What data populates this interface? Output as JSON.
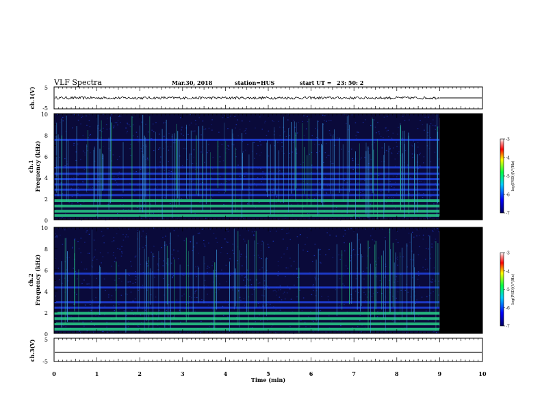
{
  "header": {
    "title": "VLF Spectra",
    "date": "Mar.30, 2018",
    "station": "station=HUS",
    "start_label": "start  UT =",
    "start_time": "23: 50: 2"
  },
  "chart_data": [
    {
      "type": "line",
      "name": "ch1-waveform",
      "ylabel": "ch.1(V)",
      "ylim": [
        -5,
        5
      ],
      "yticks": [
        "5",
        "-5"
      ],
      "xlim": [
        0,
        10
      ],
      "description_values": {
        "mean": 0,
        "noise_amplitude": 0.6,
        "data_end_min": 9.0
      }
    },
    {
      "type": "heatmap",
      "name": "ch1-spectrogram",
      "ylabel": "Frequency (kHz)",
      "channel_label": "ch.1",
      "xlim": [
        0,
        10
      ],
      "ylim": [
        0,
        10
      ],
      "yticks": [
        "0",
        "2",
        "4",
        "6",
        "8",
        "10"
      ],
      "data_end_min": 9.0,
      "bands_khz": [
        0.4,
        0.8,
        1.3,
        1.8,
        2.3,
        2.8,
        3.3,
        3.8,
        4.3,
        4.9,
        7.5
      ],
      "colorbar": {
        "label": "log(PSD)(V²/Hz)",
        "ticks": [
          "-3",
          "-4",
          "-5",
          "-6",
          "-7"
        ],
        "range": [
          -7,
          -3
        ]
      }
    },
    {
      "type": "heatmap",
      "name": "ch2-spectrogram",
      "ylabel": "Frequency (kHz)",
      "channel_label": "ch.2",
      "xlim": [
        0,
        10
      ],
      "ylim": [
        0,
        10
      ],
      "yticks": [
        "0",
        "2",
        "4",
        "6",
        "8",
        "10"
      ],
      "data_end_min": 9.0,
      "bands_khz": [
        0.4,
        0.9,
        1.4,
        1.9,
        2.4,
        2.9,
        4.3,
        5.6
      ],
      "colorbar": {
        "label": "log(PSD)(V²/Hz)",
        "ticks": [
          "-3",
          "-4",
          "-5",
          "-6",
          "-7"
        ],
        "range": [
          -7,
          -3
        ]
      }
    },
    {
      "type": "line",
      "name": "ch3-waveform",
      "ylabel": "ch.3(V)",
      "ylim": [
        -5,
        5
      ],
      "yticks": [
        "5",
        "-5"
      ],
      "xlim": [
        0,
        10
      ],
      "description_values": {
        "mean": -1.0,
        "noise_amplitude": 0
      }
    }
  ],
  "xaxis": {
    "label": "Time  (min)",
    "ticks": [
      "0",
      "1",
      "2",
      "3",
      "4",
      "5",
      "6",
      "7",
      "8",
      "9",
      "10"
    ]
  },
  "colors": {
    "spectrogram_background": "#0a0a3a",
    "no_data": "#000000",
    "band_weak": "#1f3fd8",
    "band_strong": "#29d08a",
    "sferic": "#3fa0e8"
  }
}
